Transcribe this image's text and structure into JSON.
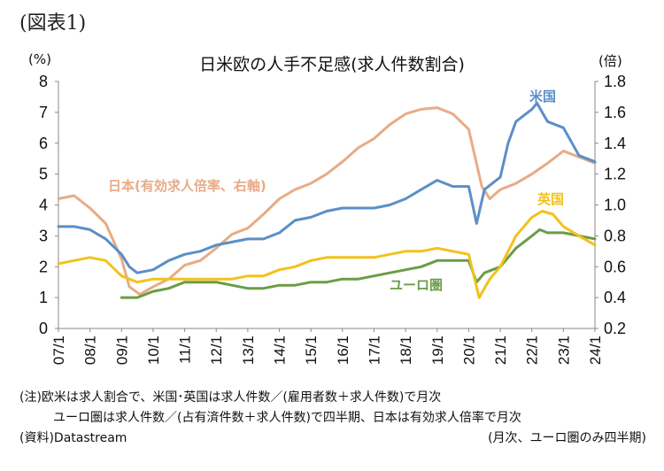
{
  "figure_label": "(図表1)",
  "notes": {
    "line1": "(注)欧米は求人割合で、米国･英国は求人件数／(雇用者数＋求人件数)で月次",
    "line2": "ユーロ圏は求人件数／(占有済件数＋求人件数)で四半期、日本は有効求人倍率で月次",
    "source": "(資料)Datastream",
    "frequency": "(月次、ユーロ圏のみ四半期)"
  },
  "chart_data": {
    "type": "line",
    "title": "日米欧の人手不足感(求人件数割合)",
    "ylabel_left": "(%)",
    "ylabel_right": "(倍)",
    "ylim_left": [
      0,
      8
    ],
    "ylim_right": [
      0.2,
      1.8
    ],
    "yticks_left": [
      "0",
      "1",
      "2",
      "3",
      "4",
      "5",
      "6",
      "7",
      "8"
    ],
    "yticks_right": [
      "0.2",
      "0.4",
      "0.6",
      "0.8",
      "1.0",
      "1.2",
      "1.4",
      "1.6",
      "1.8"
    ],
    "xticks": [
      "07/1",
      "08/1",
      "09/1",
      "10/1",
      "11/1",
      "12/1",
      "13/1",
      "14/1",
      "15/1",
      "16/1",
      "17/1",
      "18/1",
      "19/1",
      "20/1",
      "21/1",
      "22/1",
      "23/1",
      "24/1"
    ],
    "grid": false,
    "colors": {
      "us": "#5b8fc7",
      "japan": "#e8ab86",
      "uk": "#f2c21c",
      "euro": "#6b9c45"
    },
    "series": [
      {
        "name": "米国",
        "key": "us",
        "axis": "left",
        "x": [
          "2007-01",
          "2007-07",
          "2008-01",
          "2008-07",
          "2009-01",
          "2009-04",
          "2009-07",
          "2010-01",
          "2010-07",
          "2011-01",
          "2011-07",
          "2012-01",
          "2012-07",
          "2013-01",
          "2013-07",
          "2014-01",
          "2014-07",
          "2015-01",
          "2015-07",
          "2016-01",
          "2016-07",
          "2017-01",
          "2017-07",
          "2018-01",
          "2018-07",
          "2019-01",
          "2019-07",
          "2020-01",
          "2020-04",
          "2020-07",
          "2021-01",
          "2021-04",
          "2021-07",
          "2022-01",
          "2022-03",
          "2022-07",
          "2023-01",
          "2023-07",
          "2024-01"
        ],
        "values": [
          3.3,
          3.3,
          3.2,
          2.9,
          2.4,
          2.0,
          1.8,
          1.9,
          2.2,
          2.4,
          2.5,
          2.7,
          2.8,
          2.9,
          2.9,
          3.1,
          3.5,
          3.6,
          3.8,
          3.9,
          3.9,
          3.9,
          4.0,
          4.2,
          4.5,
          4.8,
          4.6,
          4.6,
          3.4,
          4.5,
          4.9,
          6.0,
          6.7,
          7.1,
          7.3,
          6.7,
          6.5,
          5.6,
          5.4
        ]
      },
      {
        "name": "日本(有効求人倍率、右軸)",
        "key": "japan",
        "axis": "right",
        "x": [
          "2007-01",
          "2007-07",
          "2008-01",
          "2008-07",
          "2009-01",
          "2009-04",
          "2009-08",
          "2010-01",
          "2010-07",
          "2011-01",
          "2011-07",
          "2012-01",
          "2012-07",
          "2013-01",
          "2013-07",
          "2014-01",
          "2014-07",
          "2015-01",
          "2015-07",
          "2016-01",
          "2016-07",
          "2017-01",
          "2017-07",
          "2018-01",
          "2018-07",
          "2019-01",
          "2019-07",
          "2020-01",
          "2020-06",
          "2020-09",
          "2021-01",
          "2021-07",
          "2022-01",
          "2022-07",
          "2023-01",
          "2023-07",
          "2024-01"
        ],
        "values": [
          1.04,
          1.06,
          0.98,
          0.88,
          0.65,
          0.47,
          0.42,
          0.47,
          0.52,
          0.61,
          0.64,
          0.72,
          0.81,
          0.85,
          0.94,
          1.04,
          1.1,
          1.14,
          1.2,
          1.28,
          1.37,
          1.43,
          1.52,
          1.59,
          1.62,
          1.63,
          1.59,
          1.49,
          1.12,
          1.04,
          1.1,
          1.14,
          1.2,
          1.27,
          1.35,
          1.31,
          1.27
        ]
      },
      {
        "name": "英国",
        "key": "uk",
        "axis": "left",
        "x": [
          "2007-01",
          "2007-07",
          "2008-01",
          "2008-07",
          "2009-01",
          "2009-07",
          "2010-01",
          "2010-07",
          "2011-01",
          "2011-07",
          "2012-01",
          "2012-07",
          "2013-01",
          "2013-07",
          "2014-01",
          "2014-07",
          "2015-01",
          "2015-07",
          "2016-01",
          "2016-07",
          "2017-01",
          "2017-07",
          "2018-01",
          "2018-07",
          "2019-01",
          "2019-07",
          "2020-01",
          "2020-05",
          "2020-09",
          "2021-01",
          "2021-07",
          "2022-01",
          "2022-05",
          "2022-09",
          "2023-01",
          "2023-07",
          "2024-01"
        ],
        "values": [
          2.1,
          2.2,
          2.3,
          2.2,
          1.7,
          1.5,
          1.6,
          1.6,
          1.6,
          1.6,
          1.6,
          1.6,
          1.7,
          1.7,
          1.9,
          2.0,
          2.2,
          2.3,
          2.3,
          2.3,
          2.3,
          2.4,
          2.5,
          2.5,
          2.6,
          2.5,
          2.4,
          1.0,
          1.6,
          2.0,
          3.0,
          3.6,
          3.8,
          3.7,
          3.3,
          3.0,
          2.7
        ]
      },
      {
        "name": "ユーロ圏",
        "key": "euro",
        "axis": "left",
        "x": [
          "2009-01",
          "2009-07",
          "2010-01",
          "2010-07",
          "2011-01",
          "2011-07",
          "2012-01",
          "2012-07",
          "2013-01",
          "2013-07",
          "2014-01",
          "2014-07",
          "2015-01",
          "2015-07",
          "2016-01",
          "2016-07",
          "2017-01",
          "2017-07",
          "2018-01",
          "2018-07",
          "2019-01",
          "2019-07",
          "2020-01",
          "2020-04",
          "2020-07",
          "2021-01",
          "2021-07",
          "2022-01",
          "2022-04",
          "2022-07",
          "2023-01",
          "2023-07",
          "2024-01"
        ],
        "values": [
          1.0,
          1.0,
          1.2,
          1.3,
          1.5,
          1.5,
          1.5,
          1.4,
          1.3,
          1.3,
          1.4,
          1.4,
          1.5,
          1.5,
          1.6,
          1.6,
          1.7,
          1.8,
          1.9,
          2.0,
          2.2,
          2.2,
          2.2,
          1.5,
          1.8,
          2.0,
          2.6,
          3.0,
          3.2,
          3.1,
          3.1,
          3.0,
          2.9
        ]
      }
    ],
    "labels": [
      {
        "key": "us",
        "text": "米国"
      },
      {
        "key": "japan",
        "text": "日本(有効求人倍率、右軸)"
      },
      {
        "key": "uk",
        "text": "英国"
      },
      {
        "key": "euro",
        "text": "ユーロ圏"
      }
    ]
  }
}
